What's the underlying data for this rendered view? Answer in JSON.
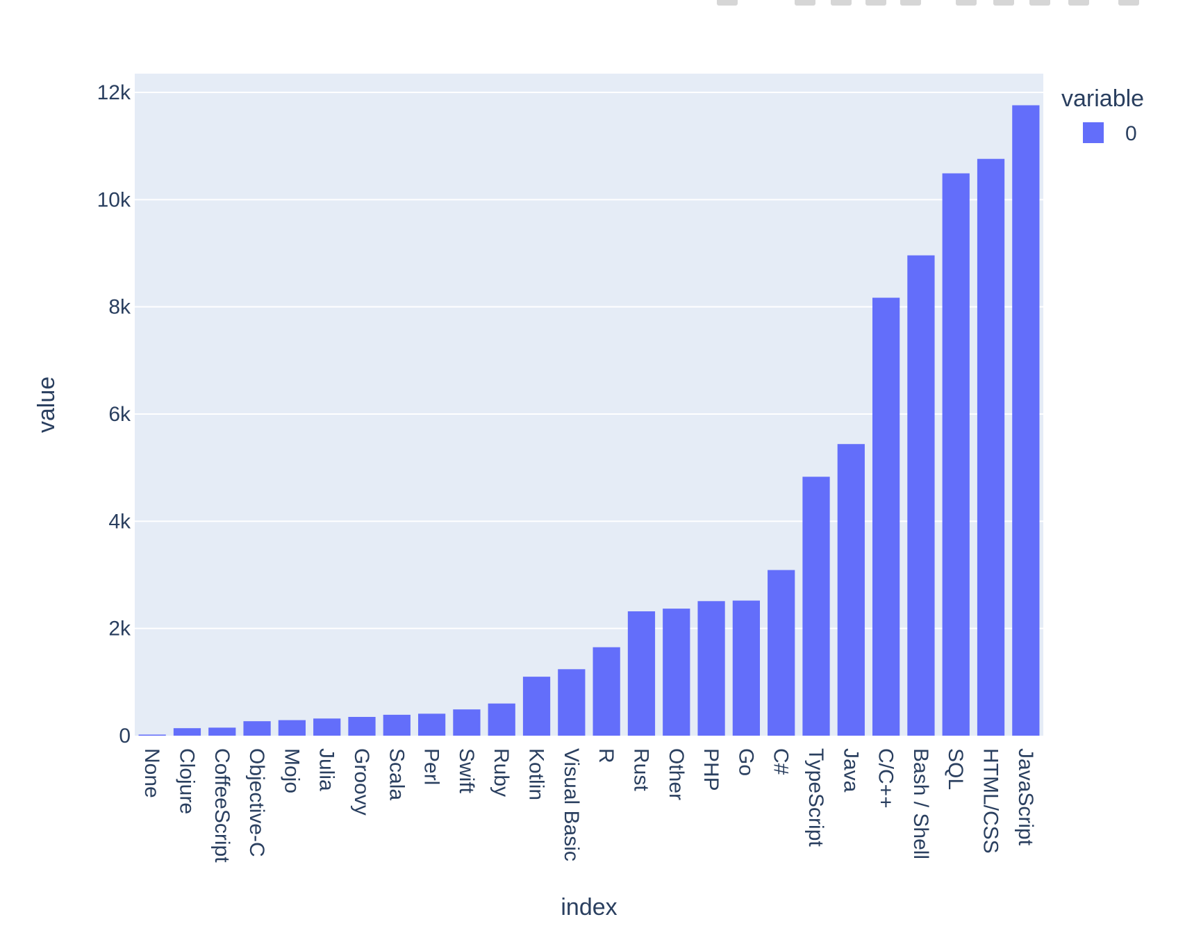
{
  "toolbar": {
    "icons": [
      "camera-icon",
      "zoom-icon",
      "pan-icon",
      "box-select-icon",
      "lasso-select-icon",
      "zoom-in-icon",
      "zoom-out-icon",
      "autoscale-icon",
      "reset-axes-icon",
      "plotly-logo-icon"
    ]
  },
  "chart_data": {
    "type": "bar",
    "categories": [
      "None",
      "Clojure",
      "CoffeeScript",
      "Objective-C",
      "Mojo",
      "Julia",
      "Groovy",
      "Scala",
      "Perl",
      "Swift",
      "Ruby",
      "Kotlin",
      "Visual Basic",
      "R",
      "Rust",
      "Other",
      "PHP",
      "Go",
      "C#",
      "TypeScript",
      "Java",
      "C/C++",
      "Bash / Shell",
      "SQL",
      "HTML/CSS",
      "JavaScript"
    ],
    "series": [
      {
        "name": "0",
        "color": "#636efa",
        "values": [
          20,
          140,
          150,
          270,
          290,
          320,
          350,
          390,
          410,
          490,
          600,
          1100,
          1240,
          1650,
          2320,
          2370,
          2510,
          2520,
          3090,
          4830,
          5440,
          8170,
          8960,
          10490,
          10760,
          11760
        ]
      }
    ],
    "xlabel": "index",
    "ylabel": "value",
    "ylim": [
      0,
      12350
    ],
    "yticks": [
      0,
      2000,
      4000,
      6000,
      8000,
      10000,
      12000
    ],
    "ytick_labels": [
      "0",
      "2k",
      "4k",
      "6k",
      "8k",
      "10k",
      "12k"
    ],
    "legend_title": "variable",
    "legend_placement": "top-right",
    "grid": true,
    "plot_background": "#e5ecf6"
  }
}
